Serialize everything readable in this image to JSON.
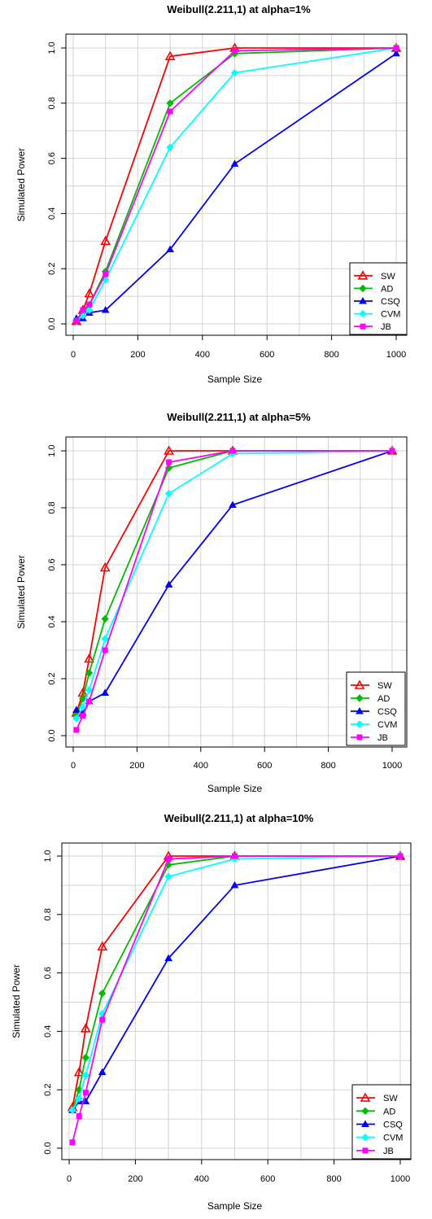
{
  "chart_data": [
    {
      "type": "line",
      "title": "Weibull(2.211,1) at alpha=1%",
      "xlabel": "Sample Size",
      "ylabel": "Simulated Power",
      "xlim": [
        0,
        1000
      ],
      "ylim": [
        0,
        1
      ],
      "x_ticks": [
        "0",
        "200",
        "400",
        "600",
        "800",
        "1000"
      ],
      "y_ticks": [
        "0.0",
        "0.2",
        "0.4",
        "0.6",
        "0.8",
        "1.0"
      ],
      "grid": true,
      "legend_position": "bottom-right",
      "x": [
        10,
        30,
        50,
        100,
        300,
        500,
        1000
      ],
      "series": [
        {
          "name": "SW",
          "color": "#ff0000",
          "marker": "triangle-open",
          "values": [
            0.01,
            0.05,
            0.11,
            0.3,
            0.97,
            1.0,
            1.0
          ]
        },
        {
          "name": "AD",
          "color": "#00bb00",
          "marker": "diamond",
          "values": [
            0.01,
            0.04,
            0.07,
            0.19,
            0.8,
            0.98,
            1.0
          ]
        },
        {
          "name": "CSQ",
          "color": "#0000ff",
          "marker": "triangle",
          "values": [
            0.02,
            0.02,
            0.04,
            0.05,
            0.27,
            0.58,
            0.98
          ]
        },
        {
          "name": "CVM",
          "color": "#00ffff",
          "marker": "diamond",
          "values": [
            0.01,
            0.03,
            0.05,
            0.16,
            0.64,
            0.91,
            1.0
          ]
        },
        {
          "name": "JB",
          "color": "#ff00ff",
          "marker": "square",
          "values": [
            0.01,
            0.05,
            0.07,
            0.18,
            0.77,
            0.99,
            1.0
          ]
        }
      ]
    },
    {
      "type": "line",
      "title": "Weibull(2.211,1) at alpha=5%",
      "xlabel": "Sample Size",
      "ylabel": "Simulated Power",
      "xlim": [
        0,
        1000
      ],
      "ylim": [
        0,
        1
      ],
      "x_ticks": [
        "0",
        "200",
        "400",
        "600",
        "800",
        "1000"
      ],
      "y_ticks": [
        "0.0",
        "0.2",
        "0.4",
        "0.6",
        "0.8",
        "1.0"
      ],
      "grid": true,
      "legend_position": "bottom-right",
      "x": [
        10,
        30,
        50,
        100,
        300,
        500,
        1000
      ],
      "series": [
        {
          "name": "SW",
          "color": "#ff0000",
          "marker": "triangle-open",
          "values": [
            0.08,
            0.15,
            0.27,
            0.59,
            1.0,
            1.0,
            1.0
          ]
        },
        {
          "name": "AD",
          "color": "#00bb00",
          "marker": "diamond",
          "values": [
            0.07,
            0.13,
            0.22,
            0.41,
            0.94,
            1.0,
            1.0
          ]
        },
        {
          "name": "CSQ",
          "color": "#0000ff",
          "marker": "triangle",
          "values": [
            0.09,
            0.08,
            0.12,
            0.15,
            0.53,
            0.81,
            1.0
          ]
        },
        {
          "name": "CVM",
          "color": "#00ffff",
          "marker": "diamond",
          "values": [
            0.06,
            0.1,
            0.16,
            0.34,
            0.85,
            0.99,
            1.0
          ]
        },
        {
          "name": "JB",
          "color": "#ff00ff",
          "marker": "square",
          "values": [
            0.02,
            0.07,
            0.12,
            0.3,
            0.96,
            1.0,
            1.0
          ]
        }
      ]
    },
    {
      "type": "line",
      "title": "Weibull(2.211,1) at alpha=10%",
      "xlabel": "Sample Size",
      "ylabel": "Simulated Power",
      "xlim": [
        0,
        1000
      ],
      "ylim": [
        0,
        1
      ],
      "x_ticks": [
        "0",
        "200",
        "400",
        "600",
        "800",
        "1000"
      ],
      "y_ticks": [
        "0.0",
        "0.2",
        "0.4",
        "0.6",
        "0.8",
        "1.0"
      ],
      "grid": true,
      "legend_position": "bottom-right",
      "x": [
        10,
        30,
        50,
        100,
        300,
        500,
        1000
      ],
      "series": [
        {
          "name": "SW",
          "color": "#ff0000",
          "marker": "triangle-open",
          "values": [
            0.14,
            0.26,
            0.41,
            0.69,
            1.0,
            1.0,
            1.0
          ]
        },
        {
          "name": "AD",
          "color": "#00bb00",
          "marker": "diamond",
          "values": [
            0.13,
            0.2,
            0.31,
            0.53,
            0.97,
            1.0,
            1.0
          ]
        },
        {
          "name": "CSQ",
          "color": "#0000ff",
          "marker": "triangle",
          "values": [
            0.13,
            0.16,
            0.16,
            0.26,
            0.65,
            0.9,
            1.0
          ]
        },
        {
          "name": "CVM",
          "color": "#00ffff",
          "marker": "diamond",
          "values": [
            0.13,
            0.17,
            0.25,
            0.46,
            0.93,
            0.99,
            1.0
          ]
        },
        {
          "name": "JB",
          "color": "#ff00ff",
          "marker": "square",
          "values": [
            0.02,
            0.11,
            0.19,
            0.44,
            0.99,
            1.0,
            1.0
          ]
        }
      ]
    }
  ]
}
